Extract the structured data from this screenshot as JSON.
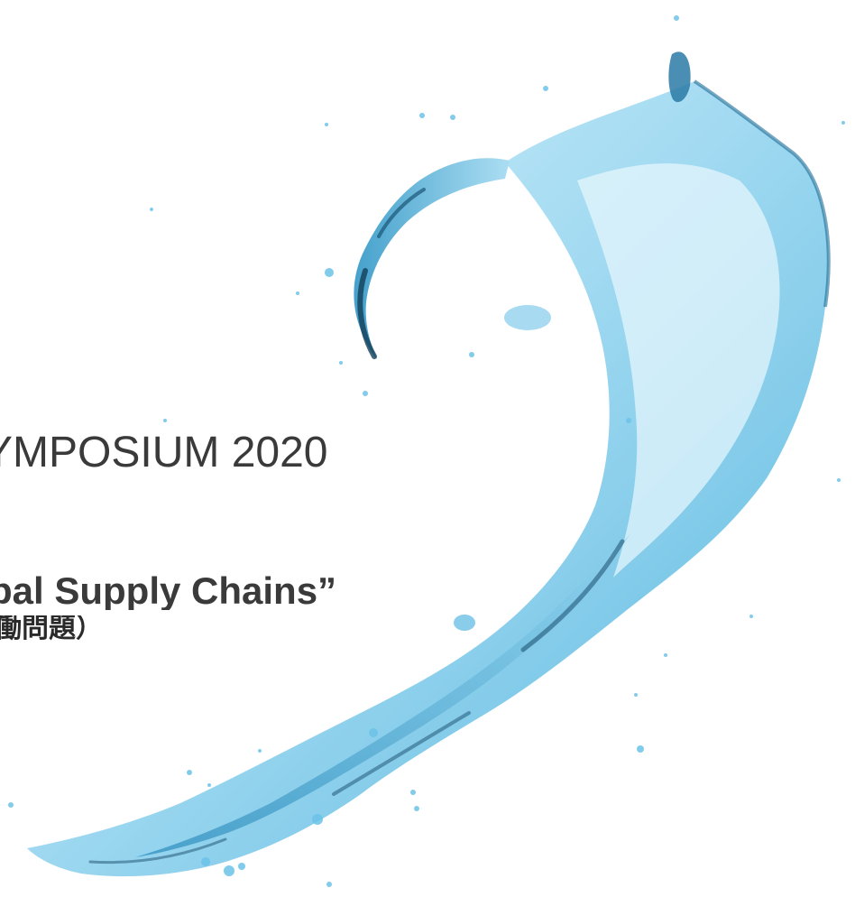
{
  "slide": {
    "headline": "YMPOSIUM 2020",
    "subtitle": "bal Supply Chains”",
    "subtitle_jp": "働問題）"
  },
  "colors": {
    "background": "#ffffff",
    "text": "#3a3a3a",
    "splash_light": "#bfe7f7",
    "splash_mid": "#6cc3e8",
    "splash_dark": "#1a5f86"
  },
  "graphic": {
    "splash": "water-splash-graphic"
  }
}
